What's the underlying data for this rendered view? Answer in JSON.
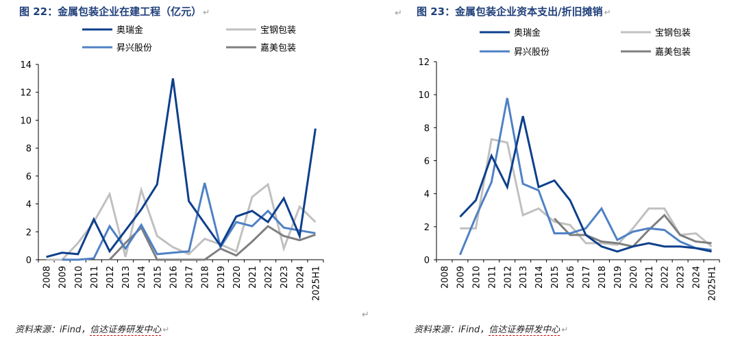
{
  "left": {
    "title": "图  22：金属包装企业在建工程（亿元）",
    "source_prefix": "资料来源：",
    "source_ifind": "iFind，",
    "source_rest": "信达证券研发中心"
  },
  "right": {
    "title": "图  23：金属包装企业资本支出/折旧摊销",
    "source_prefix": "资料来源：",
    "source_ifind": "iFind，",
    "source_rest": "信达证券研发中心"
  },
  "return_mark": "↵",
  "colors": {
    "aoruijin": "#0d3f8c",
    "baogang": "#c0c0c0",
    "shengxing": "#4f81c4",
    "jiamei": "#7f7f7f"
  },
  "chart_data": [
    {
      "type": "line",
      "title": "金属包装企业在建工程（亿元）",
      "categories": [
        "2008",
        "2009",
        "2010",
        "2011",
        "2012",
        "2013",
        "2014",
        "2015",
        "2016",
        "2017",
        "2018",
        "2019",
        "2020",
        "2021",
        "2022",
        "2023",
        "2024",
        "2025H1"
      ],
      "ylim": [
        0,
        14
      ],
      "yticks": [
        0,
        2,
        4,
        6,
        8,
        10,
        12,
        14
      ],
      "series": [
        {
          "name": "奥瑞金",
          "values": [
            0.2,
            0.5,
            0.4,
            2.9,
            0.6,
            2.1,
            3.6,
            5.4,
            13.0,
            4.2,
            2.6,
            1.0,
            3.1,
            3.5,
            2.7,
            4.4,
            1.7,
            9.4
          ]
        },
        {
          "name": "宝钢包装",
          "values": [
            0,
            0,
            1.2,
            2.7,
            4.7,
            0.2,
            5.0,
            1.7,
            0.9,
            0.4,
            1.5,
            1.1,
            0.6,
            4.5,
            5.4,
            0.8,
            3.8,
            2.7
          ]
        },
        {
          "name": "昇兴股份",
          "values": [
            null,
            0,
            0,
            0.1,
            2.4,
            0.8,
            2.5,
            0.4,
            0.5,
            0.6,
            5.5,
            0.9,
            2.7,
            2.4,
            3.5,
            2.3,
            2.1,
            1.9
          ]
        },
        {
          "name": "嘉美包装",
          "values": [
            null,
            null,
            null,
            null,
            0,
            1.2,
            2.3,
            0,
            0,
            0,
            0,
            0.8,
            0.3,
            1.3,
            2.4,
            1.7,
            1.4,
            1.8
          ]
        }
      ]
    },
    {
      "type": "line",
      "title": "金属包装企业资本支出/折旧摊销",
      "categories": [
        "2008",
        "2009",
        "2010",
        "2011",
        "2012",
        "2013",
        "2014",
        "2015",
        "2016",
        "2017",
        "2018",
        "2019",
        "2020",
        "2021",
        "2022",
        "2023",
        "2024",
        "2025H1"
      ],
      "ylim": [
        0,
        12
      ],
      "yticks": [
        0,
        2,
        4,
        6,
        8,
        10,
        12
      ],
      "series": [
        {
          "name": "奥瑞金",
          "values": [
            null,
            2.6,
            3.6,
            6.3,
            4.4,
            8.7,
            4.4,
            4.8,
            3.6,
            1.5,
            0.8,
            0.5,
            0.8,
            1.0,
            0.8,
            0.8,
            0.7,
            0.5
          ]
        },
        {
          "name": "宝钢包装",
          "values": [
            null,
            1.9,
            1.9,
            7.3,
            7.1,
            2.7,
            3.1,
            2.3,
            2.1,
            1.0,
            1.0,
            0.9,
            1.9,
            3.1,
            3.1,
            1.5,
            1.6,
            0.8
          ]
        },
        {
          "name": "昇兴股份",
          "values": [
            null,
            0.3,
            2.6,
            4.7,
            9.8,
            4.6,
            4.2,
            1.6,
            1.6,
            1.9,
            3.1,
            1.2,
            1.7,
            1.9,
            1.8,
            1.1,
            0.7,
            0.6
          ]
        },
        {
          "name": "嘉美包装",
          "values": [
            null,
            null,
            null,
            null,
            null,
            null,
            null,
            2.5,
            1.5,
            1.5,
            1.1,
            1.0,
            0.8,
            1.8,
            2.7,
            1.5,
            1.1,
            1.0
          ]
        }
      ]
    }
  ]
}
